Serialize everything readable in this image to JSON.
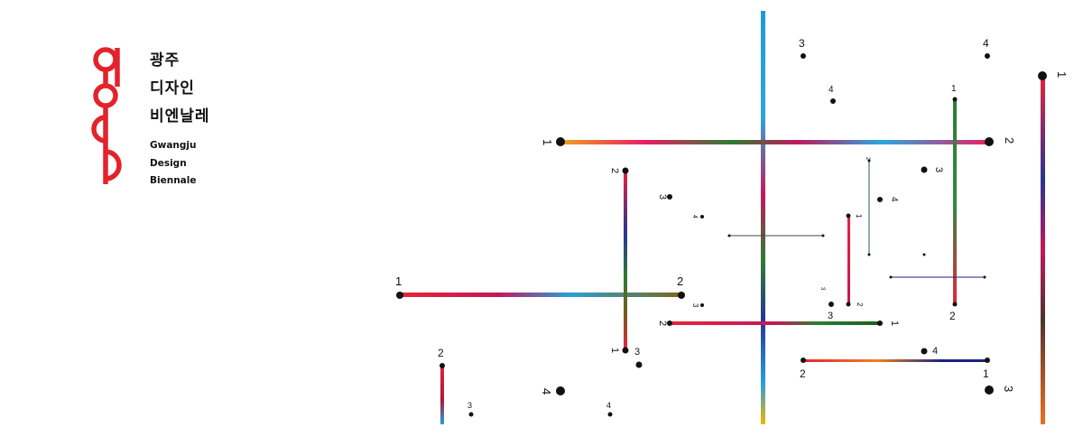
{
  "brand": {
    "logo_icon": "gdb-red-mark-icon",
    "accent_color": "#e3232b",
    "korean_lines": [
      "광주",
      "디자인",
      "비엔날레"
    ],
    "english_lines": [
      "Gwangju",
      "Design",
      "Biennale"
    ]
  },
  "markers": {
    "m01": "1",
    "m02": "2",
    "m03": "3",
    "m04": "4",
    "m05": "4",
    "m06": "1",
    "m07": "1",
    "m08": "2",
    "m09": "3",
    "m10": "2",
    "m11": "2",
    "m12": "3",
    "m13": "4",
    "m14": "1",
    "m15": "2",
    "m16": "4",
    "m17": "1",
    "m18": "3",
    "m19": "2",
    "m20": "3",
    "m21": "2",
    "m22": "3",
    "m23": "1",
    "m24": "1",
    "m25": "3",
    "m26": "2",
    "m27": "4",
    "m28": "3",
    "m29": "4",
    "m30": "2",
    "m31": "1",
    "m32": "4",
    "m33": "3"
  }
}
